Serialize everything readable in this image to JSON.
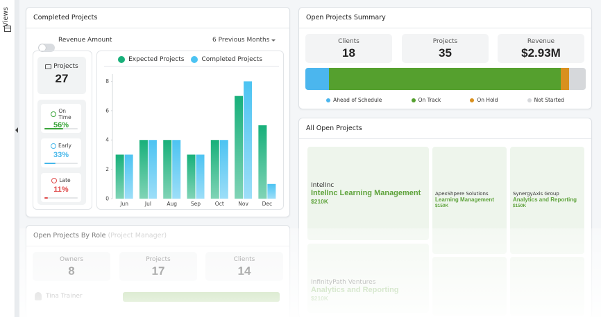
{
  "sidebar": {
    "views_label": "Views",
    "icon": "views-icon"
  },
  "completed": {
    "title": "Completed Projects",
    "toggle_label": "Revenue Amount",
    "toggle_on": false,
    "period": "6 Previous Months",
    "projects_label": "Projects",
    "projects_value": "27",
    "statuses": [
      {
        "label_line1": "On",
        "label_line2": "Time",
        "pct": "56%",
        "fraction": 0.56,
        "color": "#3aa53a",
        "icon": "clock-check-icon"
      },
      {
        "label_line1": "Early",
        "label_line2": "",
        "pct": "33%",
        "fraction": 0.33,
        "color": "#45b7ea",
        "icon": "clock-early-icon"
      },
      {
        "label_line1": "Late",
        "label_line2": "",
        "pct": "11%",
        "fraction": 0.11,
        "color": "#e04b4b",
        "icon": "clock-late-icon"
      }
    ]
  },
  "chart_data": {
    "type": "bar",
    "categories": [
      "Jun",
      "Jul",
      "Aug",
      "Sep",
      "Oct",
      "Nov",
      "Dec"
    ],
    "series": [
      {
        "name": "Expected Projects",
        "values": [
          3,
          4,
          4,
          3,
          4,
          7,
          5
        ],
        "color": "#18b07a"
      },
      {
        "name": "Completed Projects",
        "values": [
          3,
          4,
          4,
          3,
          4,
          8,
          1
        ],
        "color": "#4cc3f2"
      }
    ],
    "yticks": [
      0,
      2,
      4,
      6,
      8
    ],
    "ylim": [
      0,
      8.4
    ],
    "legend": "top",
    "grid": false
  },
  "summary": {
    "title": "Open Projects Summary",
    "stats": [
      {
        "label": "Clients",
        "value": "18"
      },
      {
        "label": "Projects",
        "value": "35"
      },
      {
        "label": "Revenue",
        "value": "$2.93M"
      }
    ],
    "segments": [
      {
        "name": "Ahead of Schedule",
        "fraction": 0.085,
        "color": "#4bb6ee"
      },
      {
        "name": "On Track",
        "fraction": 0.825,
        "color": "#55a02e"
      },
      {
        "name": "On Hold",
        "fraction": 0.03,
        "color": "#d9901e"
      },
      {
        "name": "Not Started",
        "fraction": 0.06,
        "color": "#d6d8db"
      }
    ]
  },
  "all_open": {
    "title": "All Open Projects",
    "tiles": [
      {
        "client": "IntelInc",
        "project": "IntelInc Learning Management",
        "revenue": "$210K"
      },
      {
        "client": "ApexShpere Solutions",
        "project": "Learning Management",
        "revenue": "$150K"
      },
      {
        "client": "SynergyAxis Group",
        "project": "Analytics and Reporting",
        "revenue": "$150K"
      },
      {
        "client": "InfinityPath Ventures",
        "project": "Analytics and Reporting",
        "revenue": "$210K"
      }
    ]
  },
  "roles": {
    "title": "Open Projects By Role",
    "subtitle": "(Project Manager)",
    "stats": [
      {
        "label": "Owners",
        "value": "8"
      },
      {
        "label": "Projects",
        "value": "17"
      },
      {
        "label": "Clients",
        "value": "14"
      }
    ],
    "first_owner": "Tina Trainer"
  }
}
